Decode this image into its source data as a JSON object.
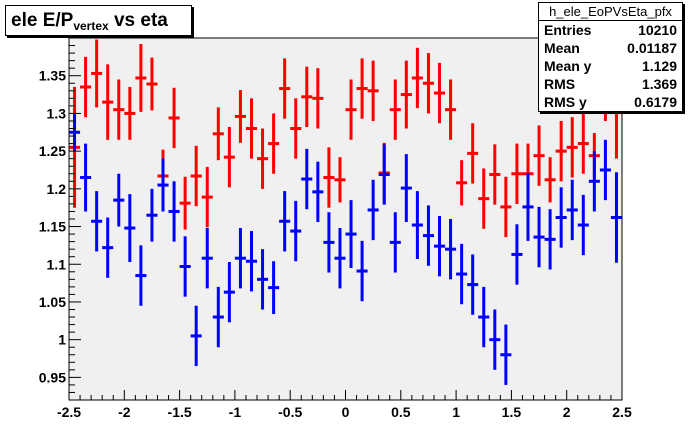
{
  "title": {
    "main": "ele E/P",
    "sub": "vertex",
    "rest": " vs eta"
  },
  "stats": {
    "name": "h_ele_EoPVsEta_pfx",
    "rows": [
      {
        "label": "Entries",
        "value": "10210"
      },
      {
        "label": "Mean",
        "value": "0.01187"
      },
      {
        "label": "Mean y",
        "value": "1.129"
      },
      {
        "label": "RMS",
        "value": "1.369"
      },
      {
        "label": "RMS y",
        "value": "0.6179"
      }
    ]
  },
  "chart_data": {
    "type": "scatter",
    "title": "ele E/Pvertex vs eta",
    "xlabel": "",
    "ylabel": "",
    "xlim": [
      -2.5,
      2.5
    ],
    "ylim": [
      0.92,
      1.4
    ],
    "xticks": [
      "-2.5",
      "-2",
      "-1.5",
      "-1",
      "-0.5",
      "0",
      "0.5",
      "1",
      "1.5",
      "2",
      "2.5"
    ],
    "yticks": [
      "0.95",
      "1",
      "1.05",
      "1.1",
      "1.15",
      "1.2",
      "1.25",
      "1.3",
      "1.35"
    ],
    "grid": false,
    "colors": {
      "red": "#ff0000",
      "blue": "#0000ff",
      "frame_bg": "#f0f0f0"
    },
    "series": [
      {
        "color": "red",
        "x": [
          -2.45,
          -2.35,
          -2.25,
          -2.15,
          -2.05,
          -1.95,
          -1.85,
          -1.75,
          -1.65,
          -1.55,
          -1.45,
          -1.35,
          -1.25,
          -1.15,
          -1.05,
          -0.95,
          -0.85,
          -0.75,
          -0.65,
          -0.55,
          -0.45,
          -0.35,
          -0.25,
          -0.15,
          -0.05,
          0.05,
          0.15,
          0.25,
          0.35,
          0.45,
          0.55,
          0.65,
          0.75,
          0.85,
          0.95,
          1.05,
          1.15,
          1.25,
          1.35,
          1.45,
          1.55,
          1.65,
          1.75,
          1.85,
          1.95,
          2.05,
          2.15,
          2.25,
          2.35,
          2.45
        ],
        "y": [
          1.255,
          1.335,
          1.353,
          1.315,
          1.305,
          1.3,
          1.347,
          1.339,
          1.217,
          1.294,
          1.181,
          1.217,
          1.189,
          1.273,
          1.242,
          1.296,
          1.28,
          1.24,
          1.26,
          1.333,
          1.28,
          1.322,
          1.32,
          1.215,
          1.212,
          1.305,
          1.333,
          1.33,
          1.221,
          1.305,
          1.325,
          1.347,
          1.34,
          1.327,
          1.305,
          1.208,
          1.247,
          1.187,
          1.219,
          1.176,
          1.22,
          1.22,
          1.244,
          1.212,
          1.25,
          1.255,
          1.26,
          1.244,
          1.33,
          1.33
        ],
        "err": [
          0.08,
          0.04,
          0.045,
          0.05,
          0.04,
          0.035,
          0.045,
          0.035,
          0.035,
          0.04,
          0.035,
          0.04,
          0.04,
          0.035,
          0.04,
          0.035,
          0.04,
          0.04,
          0.04,
          0.04,
          0.04,
          0.04,
          0.04,
          0.04,
          0.03,
          0.04,
          0.04,
          0.04,
          0.04,
          0.04,
          0.045,
          0.04,
          0.04,
          0.04,
          0.04,
          0.03,
          0.04,
          0.04,
          0.04,
          0.04,
          0.04,
          0.04,
          0.04,
          0.03,
          0.04,
          0.04,
          0.04,
          0.03,
          0.04,
          0.09
        ]
      },
      {
        "color": "blue",
        "x": [
          -2.45,
          -2.35,
          -2.25,
          -2.15,
          -2.05,
          -1.95,
          -1.85,
          -1.75,
          -1.65,
          -1.55,
          -1.45,
          -1.35,
          -1.25,
          -1.15,
          -1.05,
          -0.95,
          -0.85,
          -0.75,
          -0.65,
          -0.55,
          -0.45,
          -0.35,
          -0.25,
          -0.15,
          -0.05,
          0.05,
          0.15,
          0.25,
          0.35,
          0.45,
          0.55,
          0.65,
          0.75,
          0.85,
          0.95,
          1.05,
          1.15,
          1.25,
          1.35,
          1.45,
          1.55,
          1.65,
          1.75,
          1.85,
          1.95,
          2.05,
          2.15,
          2.25,
          2.35,
          2.45
        ],
        "y": [
          1.275,
          1.215,
          1.157,
          1.122,
          1.185,
          1.148,
          1.085,
          1.165,
          1.205,
          1.17,
          1.097,
          1.005,
          1.108,
          1.03,
          1.063,
          1.108,
          1.104,
          1.08,
          1.069,
          1.157,
          1.144,
          1.213,
          1.196,
          1.129,
          1.108,
          1.14,
          1.091,
          1.172,
          1.219,
          1.129,
          1.201,
          1.152,
          1.138,
          1.124,
          1.12,
          1.087,
          1.073,
          1.03,
          1.0,
          0.98,
          1.113,
          1.176,
          1.136,
          1.133,
          1.162,
          1.172,
          1.152,
          1.21,
          1.225,
          1.162
        ],
        "err": [
          0.025,
          0.045,
          0.04,
          0.04,
          0.035,
          0.045,
          0.04,
          0.035,
          0.035,
          0.04,
          0.04,
          0.04,
          0.04,
          0.04,
          0.04,
          0.04,
          0.04,
          0.04,
          0.035,
          0.04,
          0.04,
          0.04,
          0.04,
          0.04,
          0.04,
          0.045,
          0.04,
          0.04,
          0.04,
          0.04,
          0.045,
          0.045,
          0.04,
          0.04,
          0.04,
          0.04,
          0.04,
          0.04,
          0.04,
          0.04,
          0.04,
          0.045,
          0.04,
          0.04,
          0.04,
          0.04,
          0.04,
          0.04,
          0.04,
          0.06
        ]
      }
    ]
  }
}
